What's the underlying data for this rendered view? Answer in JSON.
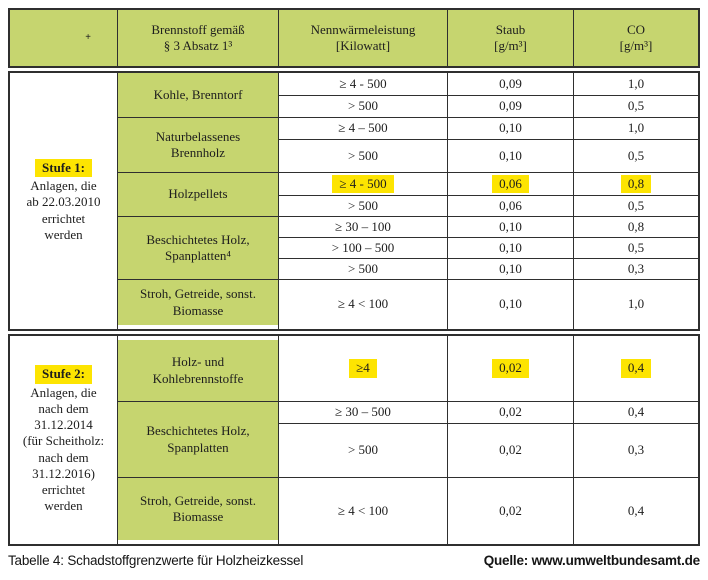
{
  "colors": {
    "cell_green": "#c6d56f",
    "highlight_yellow": "#fde401",
    "border": "#2f2f2f"
  },
  "header": {
    "corner": "+",
    "fuel": "Brennstoff gemäß\n§ 3 Absatz 1³",
    "power": "Nennwärmeleistung\n[Kilowatt]",
    "dust": "Staub\n[g/m³]",
    "co": "CO\n[g/m³]"
  },
  "stage1": {
    "label": "Stufe 1:",
    "sublabel": "Anlagen, die\nab 22.03.2010\nerrichtet\nwerden",
    "groups": [
      {
        "fuel": "Kohle, Brenntorf",
        "rows": [
          {
            "power": "≥ 4 - 500",
            "dust": "0,09",
            "co": "1,0"
          },
          {
            "power": "> 500",
            "dust": "0,09",
            "co": "0,5"
          }
        ]
      },
      {
        "fuel": "Naturbelassenes\nBrennholz",
        "rows": [
          {
            "power": "≥ 4 – 500",
            "dust": "0,10",
            "co": "1,0"
          },
          {
            "power": "> 500",
            "dust": "0,10",
            "co": "0,5"
          }
        ]
      },
      {
        "fuel": "Holzpellets",
        "rows": [
          {
            "power": "≥ 4 - 500",
            "dust": "0,06",
            "co": "0,8",
            "highlighted": true
          },
          {
            "power": "> 500",
            "dust": "0,06",
            "co": "0,5"
          }
        ]
      },
      {
        "fuel": "Beschichtetes Holz,\nSpanplatten⁴",
        "rows": [
          {
            "power": "≥ 30 – 100",
            "dust": "0,10",
            "co": "0,8"
          },
          {
            "power": "> 100 – 500",
            "dust": "0,10",
            "co": "0,5"
          },
          {
            "power": "> 500",
            "dust": "0,10",
            "co": "0,3"
          }
        ]
      },
      {
        "fuel": "Stroh, Getreide, sonst.\nBiomasse",
        "rows": [
          {
            "power": "≥ 4 < 100",
            "dust": "0,10",
            "co": "1,0"
          }
        ]
      }
    ]
  },
  "stage2": {
    "label": "Stufe 2:",
    "sublabel": "Anlagen, die\nnach dem\n31.12.2014\n(für Scheitholz:\nnach dem\n31.12.2016)\nerrichtet\nwerden",
    "groups": [
      {
        "fuel": "Holz- und\nKohlebrennstoffe",
        "rows": [
          {
            "power": "≥4",
            "dust": "0,02",
            "co": "0,4",
            "highlighted": true
          }
        ]
      },
      {
        "fuel": "Beschichtetes Holz,\nSpanplatten",
        "rows": [
          {
            "power": "≥ 30 – 500",
            "dust": "0,02",
            "co": "0,4"
          },
          {
            "power": "> 500",
            "dust": "0,02",
            "co": "0,3"
          }
        ]
      },
      {
        "fuel": "Stroh, Getreide, sonst.\nBiomasse",
        "rows": [
          {
            "power": "≥ 4 < 100",
            "dust": "0,02",
            "co": "0,4"
          }
        ]
      }
    ]
  },
  "footer": {
    "caption": "Tabelle 4: Schadstoffgrenzwerte für Holzheizkessel",
    "source": "Quelle: www.umweltbundesamt.de"
  }
}
